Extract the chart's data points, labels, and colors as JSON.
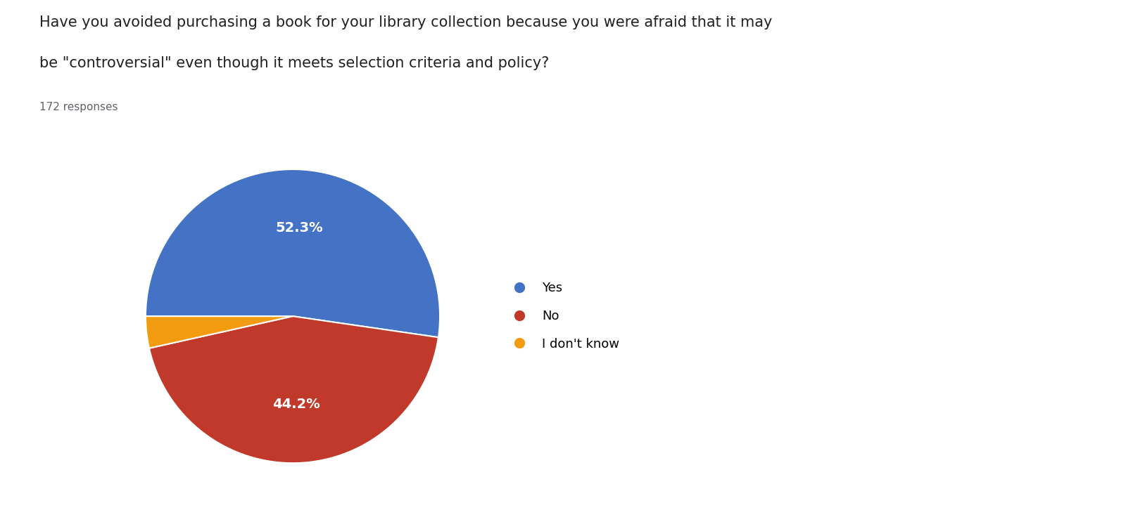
{
  "title_line1": "Have you avoided purchasing a book for your library collection because you were afraid that it may",
  "title_line2": "be \"controversial\" even though it meets selection criteria and policy?",
  "subtitle": "172 responses",
  "labels": [
    "Yes",
    "No",
    "I don't know"
  ],
  "values": [
    52.3,
    44.2,
    3.5
  ],
  "colors": [
    "#4472C4",
    "#C0392B",
    "#F39C12"
  ],
  "background_color": "#ffffff",
  "title_fontsize": 15,
  "subtitle_fontsize": 11,
  "legend_fontsize": 13
}
